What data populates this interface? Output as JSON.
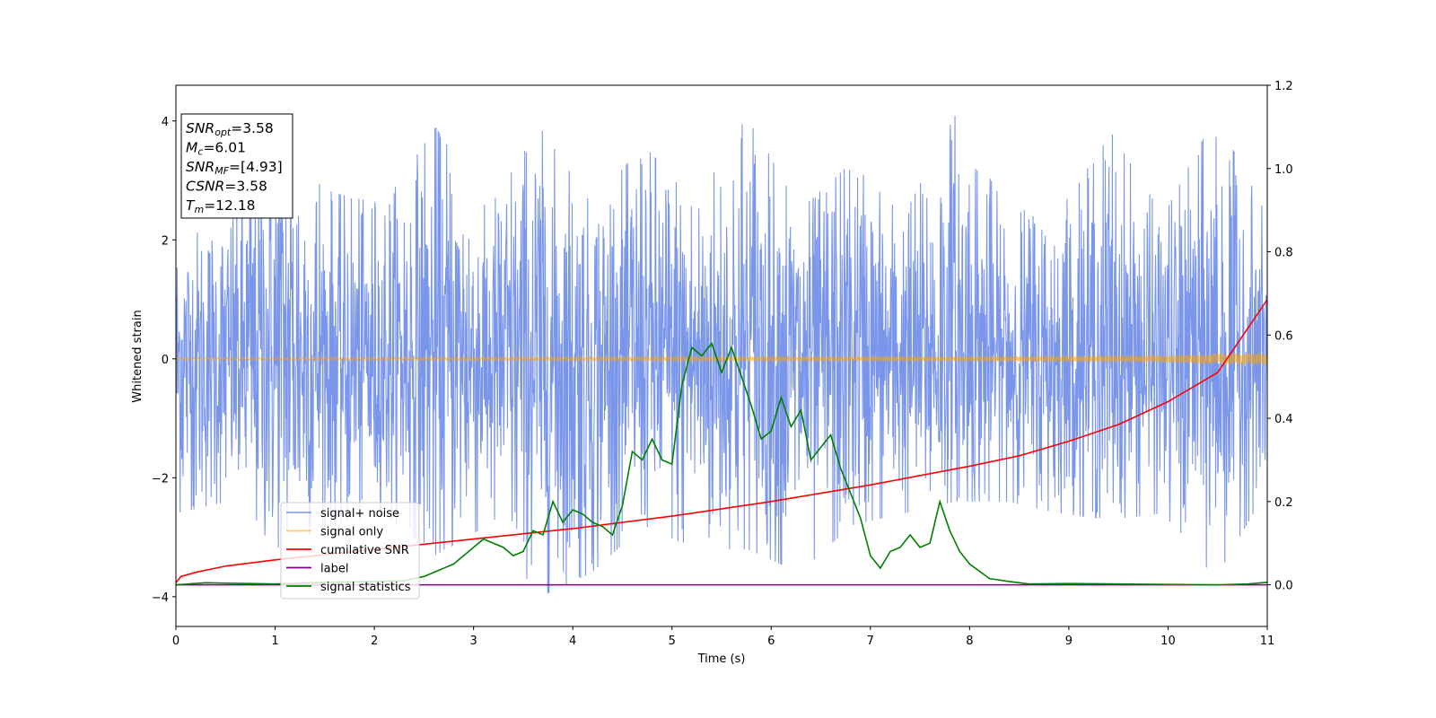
{
  "chart_data": {
    "type": "line",
    "xlabel": "Time (s)",
    "ylabel": "Whitened strain",
    "xlim": [
      0,
      11
    ],
    "ylim_left": [
      -4.5,
      4.6
    ],
    "ylim_right": [
      -0.1,
      1.2
    ],
    "x_ticks": [
      0,
      1,
      2,
      3,
      4,
      5,
      6,
      7,
      8,
      9,
      10,
      11
    ],
    "y_ticks_left": [
      -4,
      -2,
      0,
      2,
      4
    ],
    "y_ticks_left_labels": [
      "−4",
      "−2",
      "0",
      "2",
      "4"
    ],
    "y_ticks_right": [
      0.0,
      0.2,
      0.4,
      0.6,
      0.8,
      1.0,
      1.2
    ],
    "y_ticks_right_labels": [
      "0.0",
      "0.2",
      "0.4",
      "0.6",
      "0.8",
      "1.0",
      "1.2"
    ],
    "annotation": {
      "lines": [
        {
          "name": "SNR",
          "sub": "opt",
          "value": "=3.58"
        },
        {
          "name": "M",
          "sub": "c",
          "value": "=6.01"
        },
        {
          "name": "SNR",
          "sub": "MF",
          "value": "=[4.93]"
        },
        {
          "name": "CSNR",
          "sub": "",
          "value": "=3.58"
        },
        {
          "name": "T",
          "sub": "m",
          "value": "=12.18"
        }
      ]
    },
    "legend": {
      "placement": "lower-left",
      "entries": [
        {
          "label": "signal+ noise",
          "color": "#4169e1"
        },
        {
          "label": "signal only",
          "color": "#ffa500"
        },
        {
          "label": "cumilative SNR",
          "color": "#ff0000"
        },
        {
          "label": "label",
          "color": "#800080"
        },
        {
          "label": "signal statistics",
          "color": "#008000"
        }
      ]
    },
    "series": [
      {
        "name": "signal+ noise",
        "axis": "left",
        "color": "#4169e1",
        "style": "noise band",
        "upper_envelope_approx": [
          2.0,
          2.3,
          4.2,
          2.8,
          2.6,
          3.9,
          2.5,
          3.9,
          2.6,
          3.6,
          2.6,
          4.1,
          2.5,
          3.3,
          2.4,
          4.1,
          2.5,
          2.5,
          3.8,
          2.4,
          4.1,
          2.4
        ],
        "lower_envelope_approx": [
          -2.6,
          -2.4,
          -3.2,
          -2.8,
          -2.6,
          -3.3,
          -2.8,
          -4.0,
          -3.6,
          -2.8,
          -3.2,
          -3.2,
          -3.6,
          -2.8,
          -2.6,
          -2.4,
          -2.4,
          -2.6,
          -2.7,
          -2.6,
          -3.7,
          -2.2
        ]
      },
      {
        "name": "signal only",
        "axis": "left",
        "color": "#ffa500",
        "style": "chirp",
        "amplitude_x": [
          0,
          2,
          4,
          6,
          8,
          9,
          10,
          10.5,
          11
        ],
        "amplitude_y": [
          0.02,
          0.025,
          0.03,
          0.035,
          0.04,
          0.05,
          0.06,
          0.09,
          0.1
        ]
      },
      {
        "name": "cumilative SNR",
        "axis": "right",
        "color": "#ff0000",
        "x": [
          0,
          0.05,
          0.2,
          0.5,
          1,
          2,
          3,
          4,
          5,
          6,
          7,
          8,
          8.5,
          9,
          9.5,
          10,
          10.5,
          11
        ],
        "y": [
          0.005,
          0.02,
          0.03,
          0.045,
          0.06,
          0.085,
          0.11,
          0.135,
          0.165,
          0.2,
          0.24,
          0.285,
          0.31,
          0.345,
          0.385,
          0.44,
          0.51,
          0.685
        ]
      },
      {
        "name": "label",
        "axis": "right",
        "color": "#800080",
        "x": [
          0,
          11
        ],
        "y": [
          0.0,
          0.0
        ]
      },
      {
        "name": "signal statistics",
        "axis": "right",
        "color": "#008000",
        "x": [
          0,
          0.3,
          0.5,
          1,
          1.5,
          2,
          2.3,
          2.5,
          2.6,
          2.7,
          2.8,
          2.9,
          3.0,
          3.1,
          3.2,
          3.3,
          3.4,
          3.5,
          3.6,
          3.7,
          3.8,
          3.9,
          4.0,
          4.1,
          4.2,
          4.3,
          4.4,
          4.5,
          4.6,
          4.7,
          4.8,
          4.9,
          5.0,
          5.1,
          5.2,
          5.3,
          5.4,
          5.5,
          5.6,
          5.7,
          5.8,
          5.9,
          6.0,
          6.1,
          6.2,
          6.3,
          6.4,
          6.5,
          6.6,
          6.7,
          6.8,
          6.9,
          7.0,
          7.1,
          7.2,
          7.3,
          7.4,
          7.5,
          7.6,
          7.7,
          7.8,
          7.9,
          8.0,
          8.2,
          8.4,
          8.6,
          9.0,
          9.5,
          10.0,
          10.5,
          10.8,
          11.0
        ],
        "y": [
          0.0,
          0.005,
          0.004,
          0.002,
          0.006,
          0.008,
          0.01,
          0.02,
          0.03,
          0.04,
          0.05,
          0.07,
          0.09,
          0.11,
          0.1,
          0.09,
          0.07,
          0.08,
          0.13,
          0.12,
          0.2,
          0.15,
          0.18,
          0.17,
          0.15,
          0.14,
          0.12,
          0.19,
          0.32,
          0.3,
          0.35,
          0.3,
          0.29,
          0.48,
          0.57,
          0.55,
          0.58,
          0.51,
          0.57,
          0.5,
          0.43,
          0.35,
          0.37,
          0.45,
          0.38,
          0.42,
          0.3,
          0.33,
          0.36,
          0.28,
          0.22,
          0.16,
          0.07,
          0.04,
          0.08,
          0.09,
          0.12,
          0.09,
          0.1,
          0.2,
          0.13,
          0.08,
          0.05,
          0.015,
          0.008,
          0.002,
          0.003,
          0.002,
          0.001,
          0.0,
          0.002,
          0.006
        ]
      }
    ]
  }
}
